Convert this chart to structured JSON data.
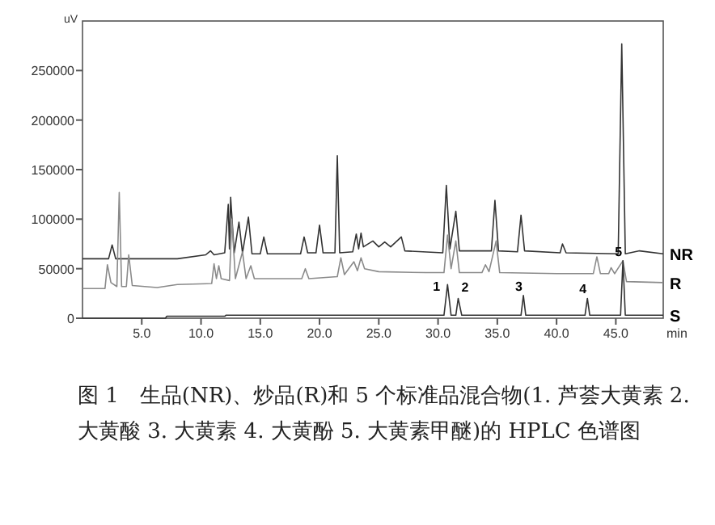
{
  "chart_data": {
    "type": "line",
    "title": "图 1　生品(NR)、炒品(R)和 5 个标准品混合物(1. 芦荟大黄素 2. 大黄酸 3. 大黄素 4. 大黄酚 5. 大黄素甲醚)的 HPLC 色谱图",
    "xlabel": "min",
    "ylabel": "uV",
    "xlim": [
      0,
      49
    ],
    "ylim": [
      0,
      300000
    ],
    "xticks": [
      {
        "value": 5,
        "label": "5.0"
      },
      {
        "value": 10,
        "label": "10.0"
      },
      {
        "value": 15,
        "label": "15.0"
      },
      {
        "value": 20,
        "label": "20.0"
      },
      {
        "value": 25,
        "label": "25.0"
      },
      {
        "value": 30,
        "label": "30.0"
      },
      {
        "value": 35,
        "label": "35.0"
      },
      {
        "value": 40,
        "label": "40.0"
      },
      {
        "value": 45,
        "label": "45.0"
      }
    ],
    "yticks": [
      0,
      50000,
      100000,
      150000,
      200000,
      250000
    ],
    "grid": false,
    "marker": "none",
    "line_style": "solid",
    "series": [
      {
        "name": "NR",
        "color": "#333333",
        "x": [
          0,
          2.2,
          2.5,
          2.8,
          8,
          10.4,
          10.8,
          11.1,
          12.0,
          12.3,
          12.4,
          12.5,
          12.8,
          13.2,
          13.5,
          14.0,
          14.3,
          15.0,
          15.3,
          15.6,
          18.4,
          18.7,
          19.0,
          19.7,
          20.0,
          20.3,
          21.3,
          21.5,
          21.7,
          22.8,
          23.1,
          23.3,
          23.5,
          23.7,
          24.5,
          25,
          25.5,
          26,
          26.9,
          27.2,
          30.4,
          30.7,
          31.0,
          31.5,
          31.8,
          34.5,
          34.8,
          35.1,
          36.7,
          37.0,
          37.3,
          40.3,
          40.5,
          40.8,
          45.2,
          45.5,
          45.8,
          47,
          49
        ],
        "values": [
          60000,
          60000,
          74000,
          60000,
          60000,
          64000,
          68000,
          64000,
          66000,
          115000,
          70000,
          122000,
          66000,
          97000,
          66000,
          102000,
          65000,
          65000,
          82000,
          65000,
          65000,
          82000,
          66000,
          66000,
          94000,
          66000,
          66000,
          164000,
          66000,
          67000,
          85000,
          70000,
          86000,
          72000,
          78000,
          72000,
          77000,
          72000,
          82000,
          68000,
          66000,
          134000,
          70000,
          108000,
          68000,
          68000,
          119000,
          68000,
          67000,
          104000,
          68000,
          66000,
          75000,
          66000,
          65000,
          277000,
          65000,
          68000,
          65000
        ]
      },
      {
        "name": "R",
        "color": "#8a8a8a",
        "x": [
          0,
          1.9,
          2.1,
          2.4,
          2.9,
          3.1,
          3.3,
          3.7,
          3.9,
          4.2,
          6.3,
          8,
          10.9,
          11.1,
          11.3,
          11.5,
          11.7,
          12.4,
          12.6,
          12.9,
          13.5,
          13.8,
          14.2,
          14.5,
          18.5,
          18.8,
          19.1,
          21.5,
          21.8,
          22.1,
          22.9,
          23.2,
          23.5,
          23.8,
          25,
          29,
          30.5,
          30.8,
          31.1,
          31.5,
          31.8,
          33.7,
          34.0,
          34.3,
          34.9,
          35.2,
          40,
          43.1,
          43.4,
          43.7,
          44.4,
          44.6,
          44.9,
          45.6,
          45.9,
          49
        ],
        "values": [
          30000,
          30000,
          54000,
          36000,
          32000,
          127000,
          32000,
          32000,
          64000,
          33000,
          31000,
          34000,
          35000,
          55000,
          40000,
          53000,
          40000,
          38000,
          100000,
          40000,
          67000,
          40000,
          53000,
          40000,
          40000,
          50000,
          40000,
          42000,
          61000,
          44000,
          57000,
          48000,
          61000,
          50000,
          47000,
          46000,
          46000,
          84000,
          50000,
          78000,
          46000,
          46000,
          54000,
          47000,
          78000,
          46000,
          45000,
          45000,
          62000,
          45000,
          45000,
          51000,
          45000,
          58000,
          37000,
          36000
        ]
      },
      {
        "name": "S",
        "color": "#333333",
        "x": [
          0,
          7,
          7.1,
          12,
          12.1,
          30.5,
          30.8,
          31.1,
          31.5,
          31.7,
          32,
          37,
          37.2,
          37.4,
          42.4,
          42.6,
          42.8,
          45.4,
          45.6,
          45.8,
          49
        ],
        "values": [
          0,
          0,
          2000,
          2000,
          3000,
          3000,
          34000,
          3000,
          3000,
          20000,
          3000,
          3000,
          23000,
          3000,
          3000,
          20000,
          3000,
          3000,
          58000,
          3000,
          3000
        ]
      }
    ],
    "annotations": [
      {
        "text": "1",
        "x": 30.8,
        "y": 34000
      },
      {
        "text": "2",
        "x": 31.7,
        "y": 20000
      },
      {
        "text": "3",
        "x": 37.2,
        "y": 23000
      },
      {
        "text": "4",
        "x": 42.6,
        "y": 20000
      },
      {
        "text": "5",
        "x": 45.6,
        "y": 58000
      }
    ]
  }
}
